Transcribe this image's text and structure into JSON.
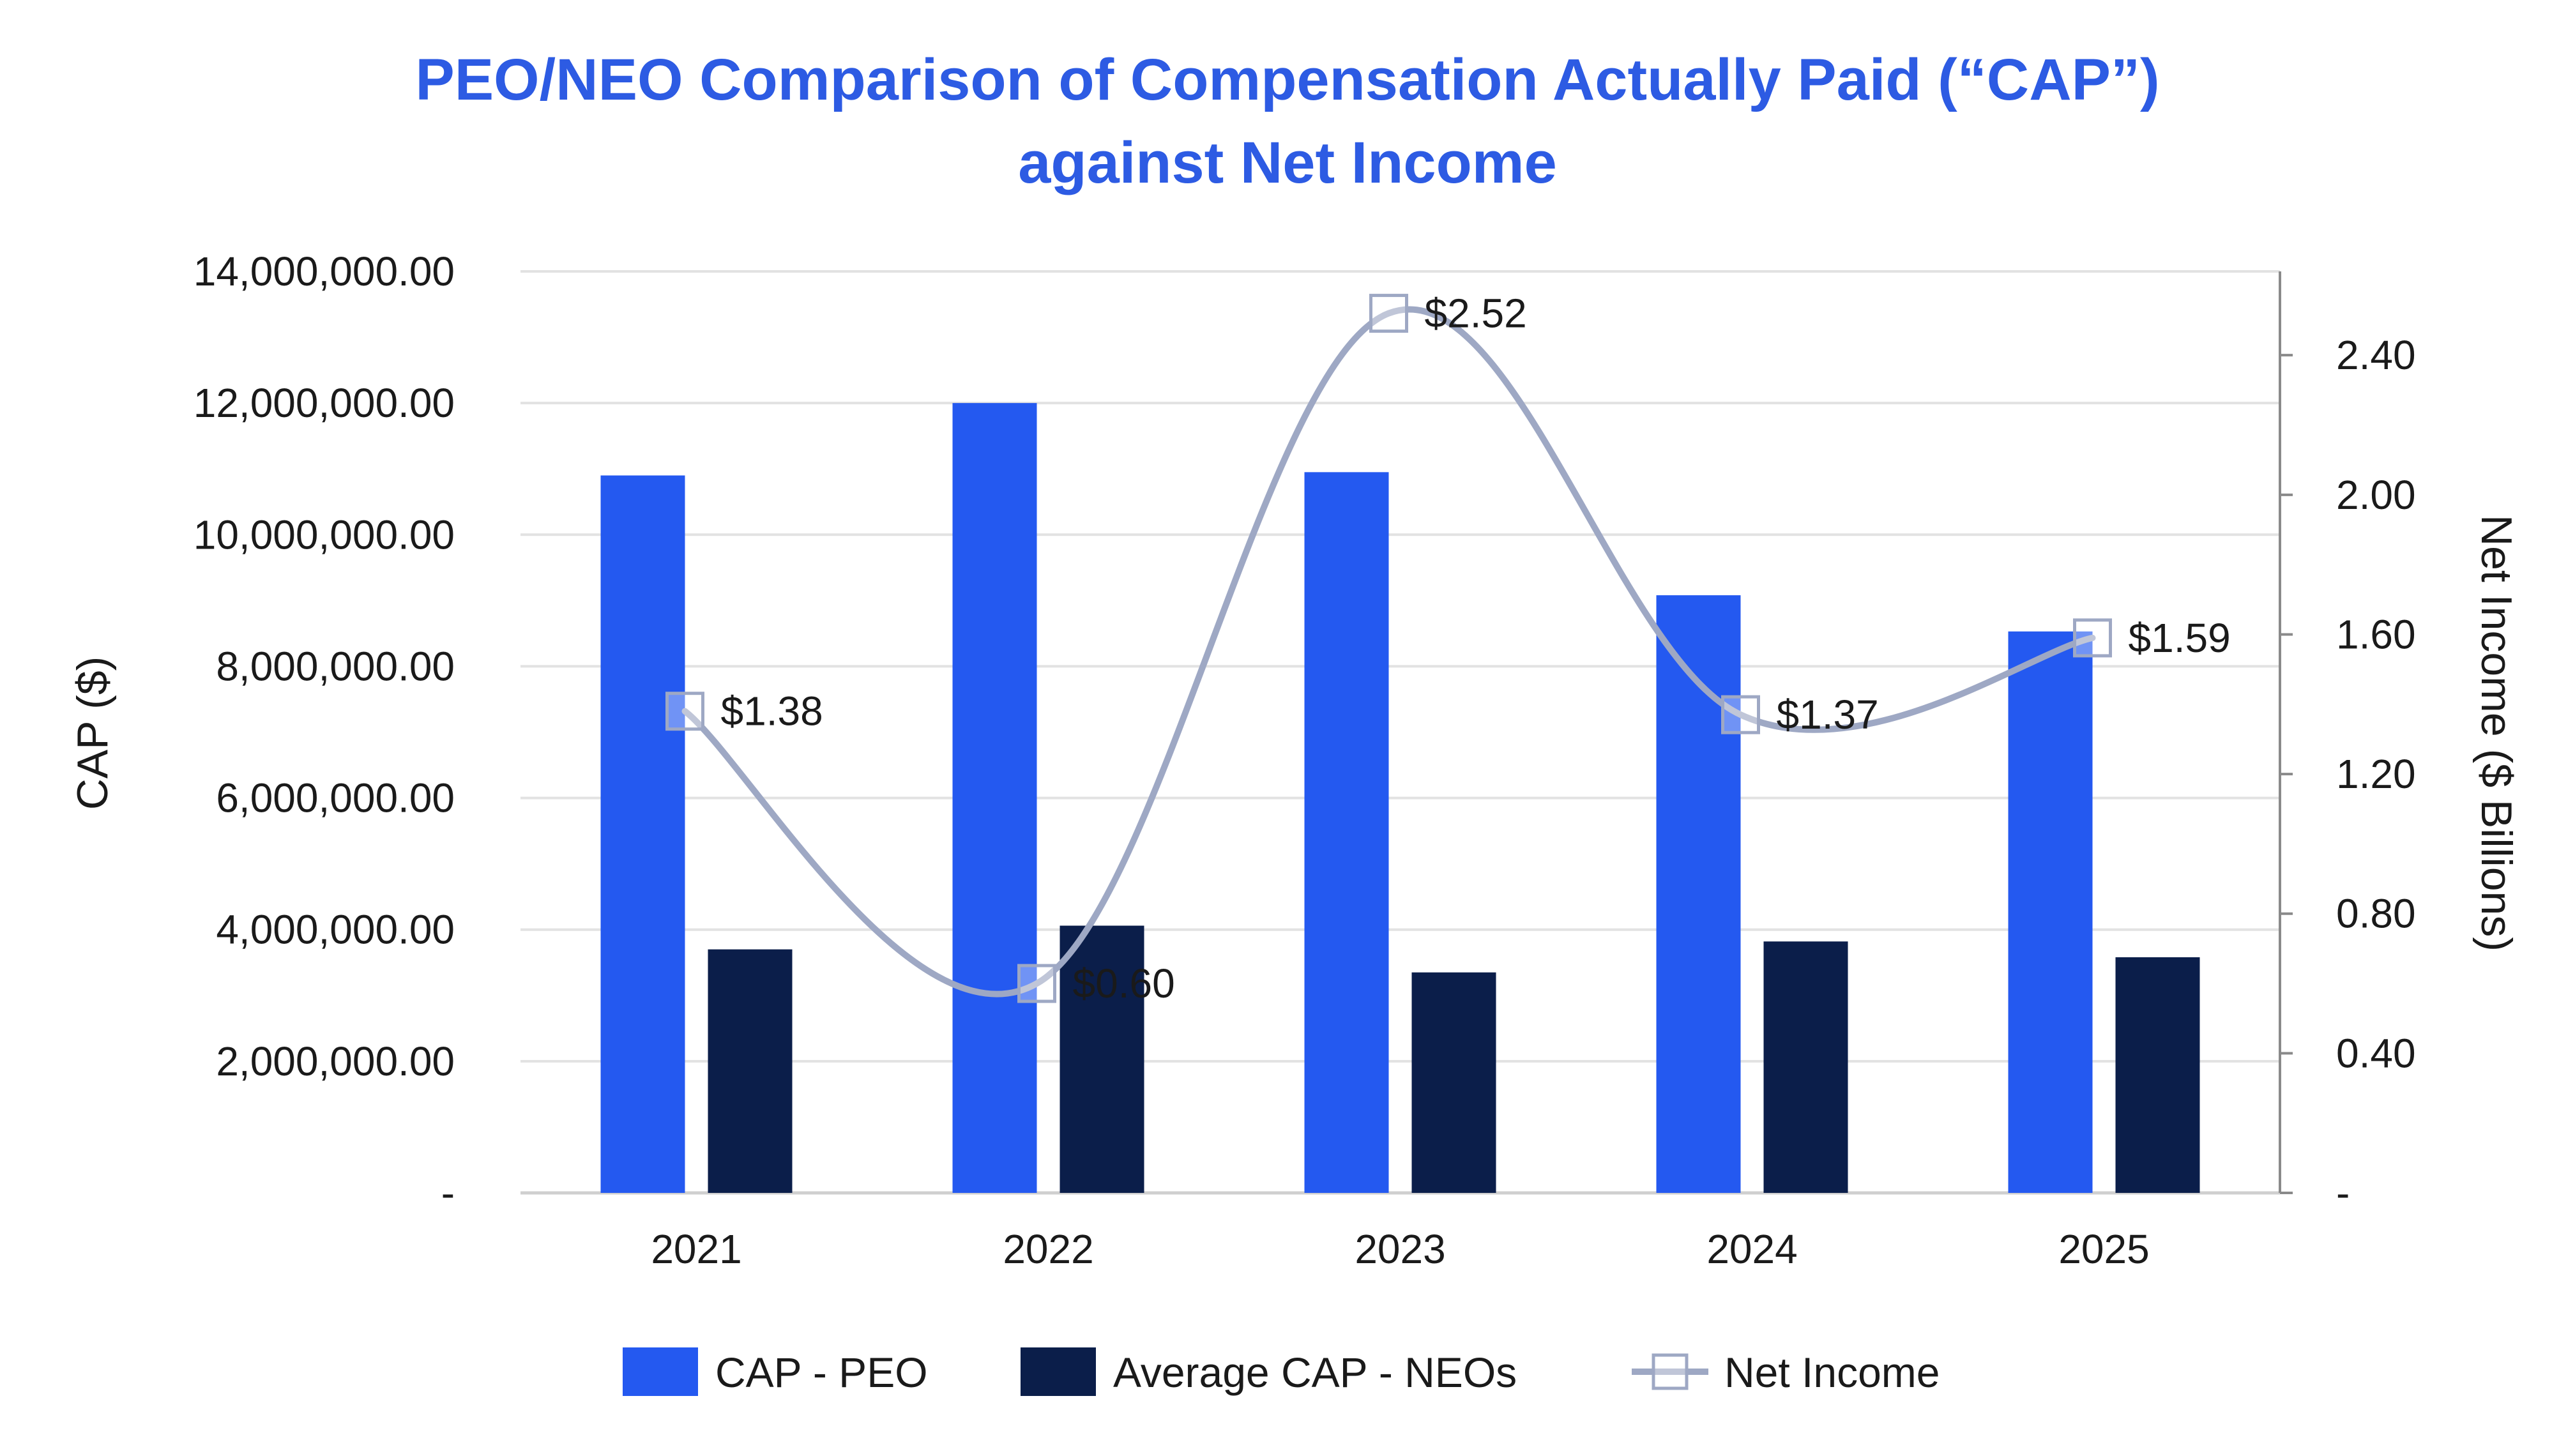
{
  "chart_data": {
    "type": "bar",
    "title_lines": [
      "PEO/NEO Comparison of Compensation Actually Paid (“CAP”)",
      "against Net Income"
    ],
    "categories": [
      "2021",
      "2022",
      "2023",
      "2024",
      "2025"
    ],
    "series": [
      {
        "name": "CAP - PEO",
        "type": "bar",
        "axis": "left",
        "color": "#2459f0",
        "values": [
          10900000,
          12000000,
          10950000,
          9080000,
          8530000
        ]
      },
      {
        "name": "Average CAP - NEOs",
        "type": "bar",
        "axis": "left",
        "color": "#0b1e4a",
        "values": [
          3700000,
          4060000,
          3350000,
          3820000,
          3580000
        ]
      },
      {
        "name": "Net Income",
        "type": "line",
        "axis": "right",
        "color": "#9ea8c4",
        "marker": "square",
        "values": [
          1.38,
          0.6,
          2.52,
          1.37,
          1.59
        ],
        "labels": [
          "$1.38",
          "$0.60",
          "$2.52",
          "$1.37",
          "$1.59"
        ]
      }
    ],
    "ylabel": "CAP ($)",
    "ylabel_right": "Net Income ($ Billions)",
    "ylim": [
      0,
      14000000
    ],
    "ylim_right": [
      0,
      2.64
    ],
    "yticks": [
      "-",
      "2,000,000.00",
      "4,000,000.00",
      "6,000,000.00",
      "8,000,000.00",
      "10,000,000.00",
      "12,000,000.00",
      "14,000,000.00"
    ],
    "yticks_right": [
      "-",
      "0.40",
      "0.80",
      "1.20",
      "1.60",
      "2.00",
      "2.40"
    ],
    "grid": true,
    "legend_position": "bottom-center"
  }
}
